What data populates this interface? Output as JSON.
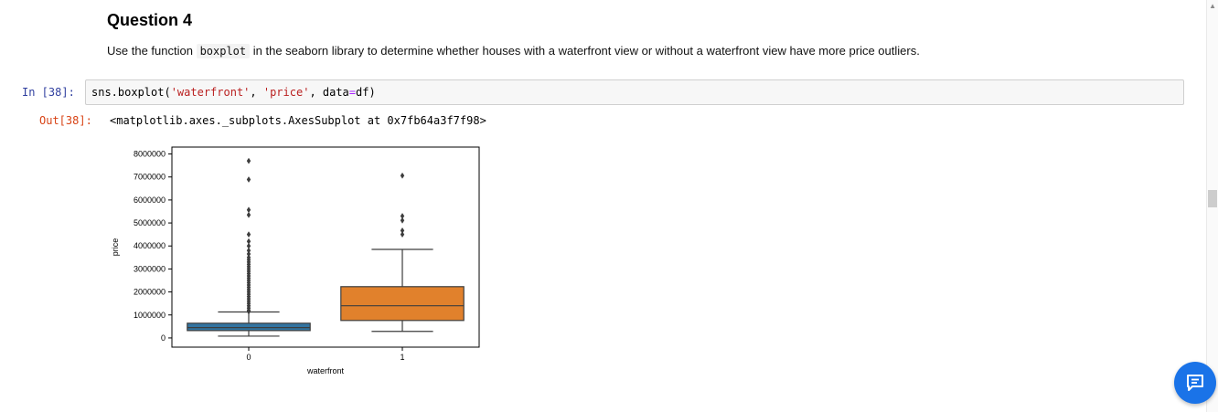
{
  "markdown": {
    "title": "Question 4",
    "text_before": "Use the function ",
    "code_word": "boxplot",
    "text_after": " in the seaborn library to determine whether houses with a waterfront view or without a waterfront view have more price outliers."
  },
  "cell": {
    "in_prompt": "In [38]:",
    "out_prompt": "Out[38]:",
    "code_parts": {
      "fn": "sns.boxplot(",
      "arg1": "'waterfront'",
      "sep1": ", ",
      "arg2": "'price'",
      "sep2": ", data",
      "eq": "=",
      "end": "df)"
    },
    "output_text": "<matplotlib.axes._subplots.AxesSubplot at 0x7fb64a3f7f98>"
  },
  "chart_data": {
    "type": "box",
    "xlabel": "waterfront",
    "ylabel": "price",
    "ylim": [
      -400000,
      8300000
    ],
    "yticks": [
      0,
      1000000,
      2000000,
      3000000,
      4000000,
      5000000,
      6000000,
      7000000,
      8000000
    ],
    "ytick_labels": [
      "0",
      "1000000",
      "2000000",
      "3000000",
      "4000000",
      "5000000",
      "6000000",
      "7000000",
      "8000000"
    ],
    "categories": [
      "0",
      "1"
    ],
    "colors": [
      "#3274a1",
      "#e1812c"
    ],
    "boxes": [
      {
        "category": "0",
        "whisker_low": 80000,
        "q1": 320000,
        "median": 450000,
        "q3": 640000,
        "whisker_high": 1130000,
        "outliers": [
          1150000,
          1200000,
          1300000,
          1400000,
          1500000,
          1600000,
          1700000,
          1800000,
          1900000,
          2000000,
          2100000,
          2200000,
          2300000,
          2400000,
          2500000,
          2600000,
          2700000,
          2800000,
          2900000,
          3000000,
          3100000,
          3200000,
          3300000,
          3400000,
          3500000,
          3650000,
          3800000,
          4000000,
          4200000,
          4500000,
          5350000,
          5570000,
          6890000,
          7700000
        ]
      },
      {
        "category": "1",
        "whisker_low": 285000,
        "q1": 760000,
        "median": 1400000,
        "q3": 2230000,
        "whisker_high": 3850000,
        "outliers": [
          4500000,
          4670000,
          5110000,
          5300000,
          7060000
        ]
      }
    ]
  }
}
